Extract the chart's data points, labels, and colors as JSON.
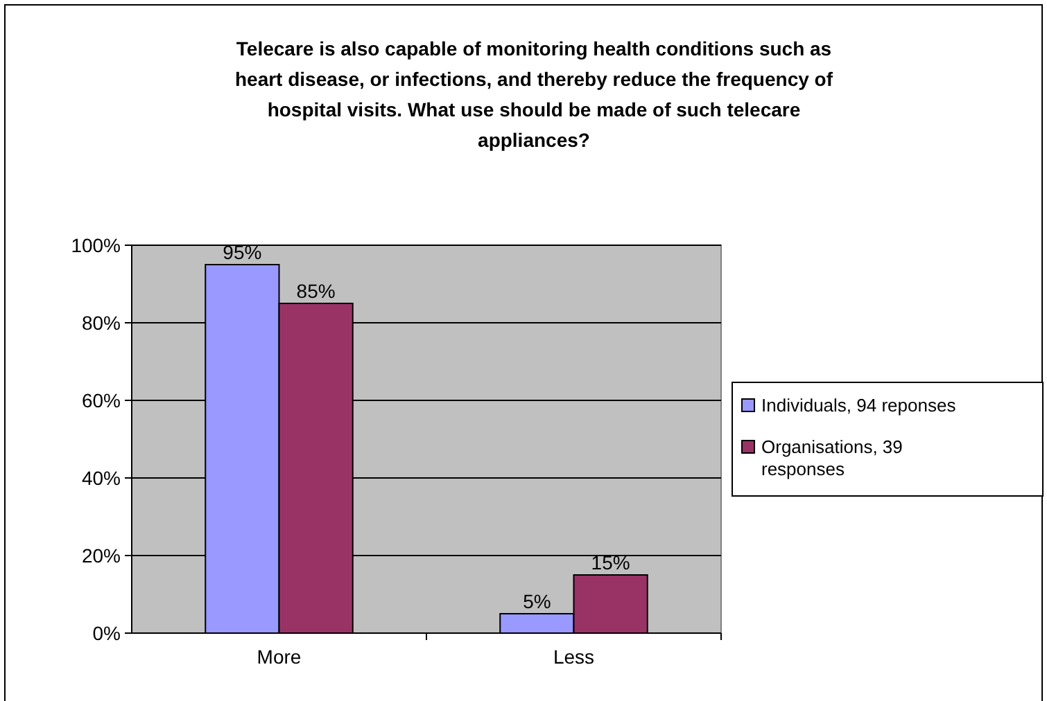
{
  "chart_data": {
    "type": "bar",
    "title": "Telecare is also capable of monitoring health conditions such as heart disease, or infections, and thereby reduce the frequency of hospital visits. What use should be made of such telecare appliances?",
    "categories": [
      "More",
      "Less"
    ],
    "series": [
      {
        "name": "Individuals, 94 reponses",
        "color": "#9999ff",
        "values": [
          95,
          5
        ],
        "value_labels": [
          "95%",
          "5%"
        ]
      },
      {
        "name": "Organisations, 39 responses",
        "color": "#993366",
        "values": [
          85,
          15
        ],
        "value_labels": [
          "85%",
          "15%"
        ]
      }
    ],
    "ylim": [
      0,
      100
    ],
    "yticks": [
      {
        "value": 0,
        "label": "0%"
      },
      {
        "value": 20,
        "label": "20%"
      },
      {
        "value": 40,
        "label": "40%"
      },
      {
        "value": 60,
        "label": "60%"
      },
      {
        "value": 80,
        "label": "80%"
      },
      {
        "value": 100,
        "label": "100%"
      }
    ],
    "grid": "y",
    "legend": "right"
  }
}
